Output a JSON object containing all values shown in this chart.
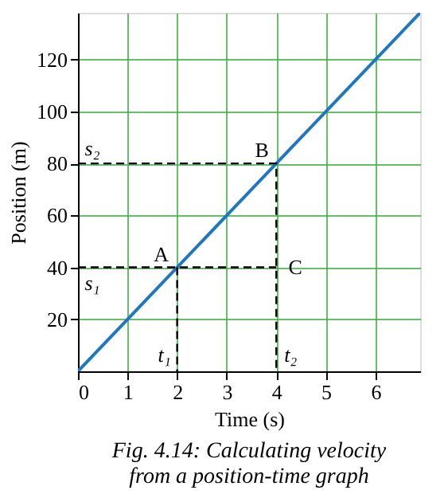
{
  "chart_data": {
    "type": "line",
    "xlabel": "Time (s)",
    "ylabel": "Position (m)",
    "xlim": [
      0,
      6.9
    ],
    "ylim": [
      0,
      138
    ],
    "xticks": [
      0,
      1,
      2,
      3,
      4,
      5,
      6
    ],
    "yticks": [
      20,
      40,
      60,
      80,
      100,
      120
    ],
    "grid": true,
    "series": [
      {
        "color": "#1f77c4",
        "x": [
          0,
          6.9
        ],
        "values": [
          0,
          138
        ]
      },
      {
        "color": "#000000",
        "line_style": "dashed",
        "x": [
          0,
          4,
          4
        ],
        "values": [
          80,
          80,
          0
        ]
      },
      {
        "color": "#000000",
        "line_style": "dashed",
        "x": [
          0,
          4
        ],
        "values": [
          40,
          40
        ]
      },
      {
        "color": "#000000",
        "line_style": "dashed",
        "x": [
          2,
          2
        ],
        "values": [
          40,
          0
        ]
      }
    ],
    "annotations": [
      {
        "text": "A",
        "x": 2,
        "y": 40
      },
      {
        "text": "B",
        "x": 4,
        "y": 80
      },
      {
        "text": "C",
        "x": 4,
        "y": 40
      },
      {
        "text": "s₂",
        "x": 0,
        "y": 80
      },
      {
        "text": "s₁",
        "x": 0,
        "y": 40
      },
      {
        "text": "t₁",
        "x": 2,
        "y": 0
      },
      {
        "text": "t₂",
        "x": 4,
        "y": 0
      },
      "Fig. 4.14: Calculating velocity from a position-time graph"
    ]
  }
}
